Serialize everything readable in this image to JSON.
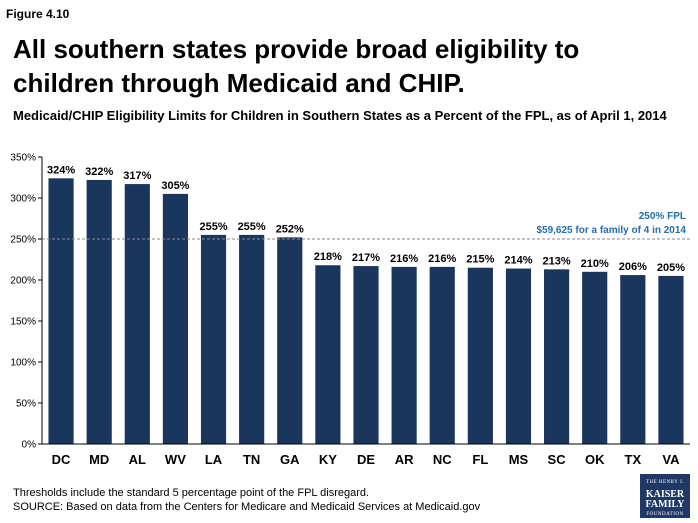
{
  "figure_label": "Figure 4.10",
  "title": "All southern states provide broad eligibility to children through Medicaid and CHIP.",
  "subtitle": "Medicaid/CHIP Eligibility Limits for Children in Southern States as a Percent of the FPL,  as of April 1, 2014",
  "footnotes": {
    "line1": "Thresholds include the standard 5 percentage point of the FPL disregard.",
    "line2": "SOURCE: Based on data from the Centers for Medicare and Medicaid Services at Medicaid.gov"
  },
  "logo": {
    "line1": "THE HENRY J.",
    "line2": "KAISER",
    "line3": "FAMILY",
    "line4": "FOUNDATION"
  },
  "colors": {
    "bar": "#1a365d",
    "reference": "#1f6fb2",
    "grid": "#d9d9d9"
  },
  "chart_data": {
    "type": "bar",
    "categories": [
      "DC",
      "MD",
      "AL",
      "WV",
      "LA",
      "TN",
      "GA",
      "KY",
      "DE",
      "AR",
      "NC",
      "FL",
      "MS",
      "SC",
      "OK",
      "TX",
      "VA"
    ],
    "values": [
      324,
      322,
      317,
      305,
      255,
      255,
      252,
      218,
      217,
      216,
      216,
      215,
      214,
      213,
      210,
      206,
      205
    ],
    "data_labels": [
      "324%",
      "322%",
      "317%",
      "305%",
      "255%",
      "255%",
      "252%",
      "218%",
      "217%",
      "216%",
      "216%",
      "215%",
      "214%",
      "213%",
      "210%",
      "206%",
      "205%"
    ],
    "ylim": [
      0,
      350
    ],
    "yticks": [
      0,
      50,
      100,
      150,
      200,
      250,
      300,
      350
    ],
    "ytick_labels": [
      "0%",
      "50%",
      "100%",
      "150%",
      "200%",
      "250%",
      "300%",
      "350%"
    ],
    "reference_line": {
      "value": 250,
      "label_line1": "250% FPL",
      "label_line2": "$59,625 for a family of 4 in 2014"
    }
  }
}
